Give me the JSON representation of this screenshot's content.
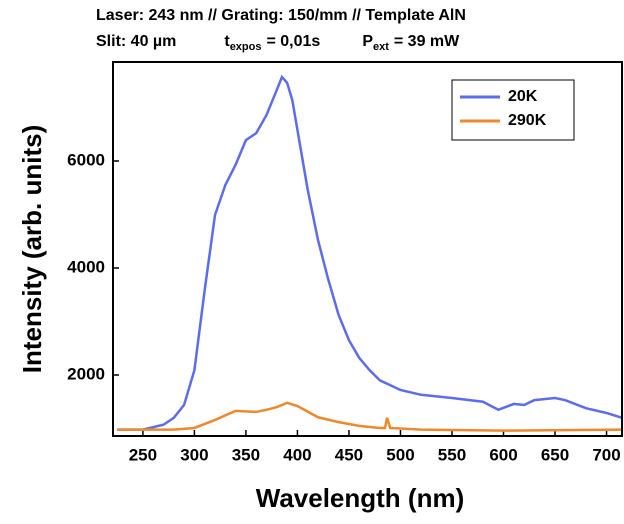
{
  "chart_data": {
    "type": "line",
    "title": "Laser: 243 nm  // Grating: 150/mm  // Template AlN",
    "subtitle": [
      {
        "text": "Slit: 40 µm"
      },
      {
        "text": "t",
        "sub": "expos",
        "after": "= 0,01s"
      },
      {
        "text": "P",
        "sub": "ext",
        "after": "= 39 mW"
      }
    ],
    "x_label": "Wavelength (nm)",
    "y_label": "Intensity (arb. units)",
    "xlim": [
      221,
      715
    ],
    "ylim": [
      860,
      7850
    ],
    "xticks": [
      250,
      300,
      350,
      400,
      450,
      500,
      550,
      600,
      650,
      700
    ],
    "yticks": [
      2000,
      4000,
      6000
    ],
    "legend": "upper right",
    "series": [
      {
        "name": "20K",
        "color": "#5b6cf0",
        "x": [
          225,
          250,
          270,
          280,
          290,
          300,
          310,
          320,
          330,
          340,
          350,
          360,
          370,
          380,
          385,
          390,
          395,
          400,
          410,
          420,
          430,
          440,
          450,
          460,
          470,
          480,
          500,
          520,
          550,
          580,
          595,
          610,
          620,
          630,
          650,
          660,
          680,
          700,
          715
        ],
        "values": [
          980,
          980,
          1070,
          1200,
          1440,
          2090,
          3590,
          4990,
          5550,
          5930,
          6390,
          6520,
          6860,
          7330,
          7570,
          7460,
          7140,
          6580,
          5460,
          4520,
          3780,
          3120,
          2650,
          2320,
          2090,
          1900,
          1720,
          1630,
          1570,
          1500,
          1350,
          1460,
          1440,
          1530,
          1570,
          1530,
          1380,
          1290,
          1200
        ]
      },
      {
        "name": "290K",
        "color": "#f0882a",
        "x": [
          225,
          280,
          300,
          320,
          340,
          360,
          370,
          380,
          390,
          400,
          420,
          440,
          460,
          480,
          485,
          487,
          490,
          520,
          600,
          715
        ],
        "values": [
          980,
          980,
          1010,
          1160,
          1330,
          1310,
          1350,
          1400,
          1480,
          1420,
          1210,
          1120,
          1050,
          1010,
          1010,
          1200,
          1010,
          980,
          960,
          980
        ]
      }
    ]
  }
}
